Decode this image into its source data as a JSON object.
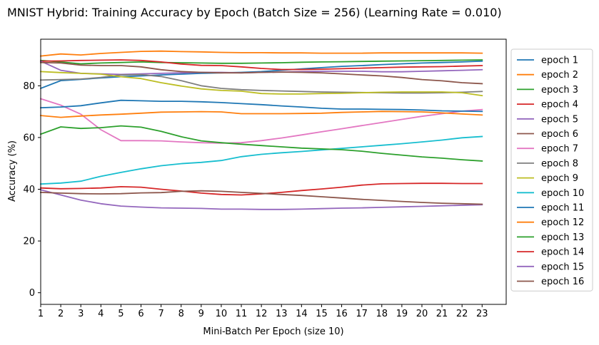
{
  "chart_data": {
    "type": "line",
    "title": "MNIST Hybrid: Training Accuracy by Epoch (Batch Size = 256) (Learning Rate = 0.010)",
    "xlabel": "Mini-Batch Per Epoch (size 10)",
    "ylabel": "Accuracy (%)",
    "xlim": [
      1,
      24.2
    ],
    "ylim": [
      -4.5,
      98
    ],
    "x_ticks": [
      1,
      2,
      3,
      4,
      5,
      6,
      7,
      8,
      9,
      10,
      11,
      12,
      13,
      14,
      15,
      16,
      17,
      18,
      19,
      20,
      21,
      22,
      23
    ],
    "y_ticks": [
      0,
      20,
      40,
      60,
      80
    ],
    "grid": false,
    "legend_position": "right-outside",
    "x": [
      1,
      2,
      3,
      4,
      5,
      6,
      7,
      8,
      9,
      10,
      11,
      12,
      13,
      14,
      15,
      16,
      17,
      18,
      19,
      20,
      21,
      22,
      23
    ],
    "series": [
      {
        "name": "epoch 1",
        "color": "#1f77b4",
        "values": [
          79.0,
          82.0,
          82.5,
          83.0,
          83.5,
          83.8,
          84.2,
          84.5,
          84.8,
          85.0,
          85.2,
          85.5,
          86.0,
          86.5,
          87.0,
          87.5,
          87.8,
          88.2,
          88.5,
          88.8,
          89.0,
          89.2,
          89.5
        ]
      },
      {
        "name": "epoch 2",
        "color": "#ff7f0e",
        "values": [
          91.5,
          92.3,
          91.9,
          92.5,
          92.9,
          93.3,
          93.4,
          93.2,
          93.1,
          92.9,
          92.8,
          92.8,
          92.7,
          92.7,
          92.6,
          92.6,
          92.6,
          92.7,
          92.7,
          92.7,
          92.7,
          92.7,
          92.6
        ]
      },
      {
        "name": "epoch 3",
        "color": "#2ca02c",
        "values": [
          89.8,
          89.2,
          88.5,
          88.8,
          89.0,
          89.2,
          89.0,
          88.9,
          88.8,
          88.7,
          88.7,
          88.8,
          88.9,
          89.1,
          89.2,
          89.3,
          89.4,
          89.5,
          89.6,
          89.7,
          89.8,
          89.9,
          90.0
        ]
      },
      {
        "name": "epoch 4",
        "color": "#d62728",
        "values": [
          89.5,
          89.6,
          89.8,
          89.9,
          90.0,
          89.8,
          89.2,
          88.4,
          87.9,
          87.8,
          87.3,
          86.7,
          86.3,
          86.3,
          86.4,
          86.6,
          86.8,
          87.0,
          87.2,
          87.3,
          87.4,
          87.6,
          87.8
        ]
      },
      {
        "name": "epoch 5",
        "color": "#9467bd",
        "values": [
          89.5,
          86.0,
          84.8,
          84.6,
          84.4,
          84.6,
          84.8,
          85.0,
          85.2,
          85.2,
          85.0,
          85.2,
          85.3,
          85.5,
          85.6,
          85.6,
          85.6,
          85.4,
          85.4,
          85.6,
          85.8,
          86.0,
          86.2
        ]
      },
      {
        "name": "epoch 6",
        "color": "#8c564b",
        "values": [
          89.0,
          88.8,
          88.0,
          87.8,
          87.8,
          87.3,
          86.2,
          85.5,
          85.2,
          85.0,
          85.0,
          85.2,
          85.3,
          85.2,
          85.0,
          84.6,
          84.2,
          83.8,
          83.2,
          82.4,
          81.9,
          81.2,
          80.8
        ]
      },
      {
        "name": "epoch 7",
        "color": "#e377c2",
        "values": [
          75.0,
          72.5,
          69.0,
          63.0,
          58.8,
          58.8,
          58.7,
          58.3,
          58.0,
          57.8,
          58.0,
          58.8,
          59.8,
          61.0,
          62.2,
          63.4,
          64.6,
          65.8,
          67.0,
          68.2,
          69.2,
          70.2,
          70.8
        ]
      },
      {
        "name": "epoch 8",
        "color": "#7f7f7f",
        "values": [
          82.2,
          82.4,
          82.6,
          83.2,
          84.2,
          84.3,
          83.6,
          82.0,
          80.0,
          79.0,
          78.5,
          78.2,
          78.0,
          77.8,
          77.6,
          77.5,
          77.4,
          77.3,
          77.2,
          77.2,
          77.3,
          77.5,
          77.8
        ]
      },
      {
        "name": "epoch 9",
        "color": "#bcbd22",
        "values": [
          85.5,
          85.1,
          84.8,
          84.5,
          83.5,
          82.8,
          81.2,
          79.9,
          78.8,
          78.2,
          77.9,
          77.0,
          76.8,
          76.8,
          77.0,
          77.1,
          77.3,
          77.5,
          77.6,
          77.6,
          77.6,
          77.3,
          76.2
        ]
      },
      {
        "name": "epoch 10",
        "color": "#17becf",
        "values": [
          42.0,
          42.4,
          43.1,
          45.0,
          46.5,
          47.9,
          49.1,
          49.9,
          50.4,
          51.1,
          52.6,
          53.5,
          54.1,
          54.6,
          55.2,
          55.8,
          56.4,
          57.0,
          57.6,
          58.3,
          59.0,
          59.9,
          60.4
        ]
      },
      {
        "name": "epoch 11",
        "color": "#1f77b4",
        "values": [
          71.5,
          71.8,
          72.3,
          73.4,
          74.4,
          74.2,
          74.0,
          74.0,
          73.8,
          73.5,
          73.1,
          72.7,
          72.2,
          71.8,
          71.3,
          71.0,
          71.0,
          70.9,
          70.8,
          70.6,
          70.3,
          70.2,
          70.1
        ]
      },
      {
        "name": "epoch 12",
        "color": "#ff7f0e",
        "values": [
          68.5,
          67.8,
          68.3,
          68.7,
          69.0,
          69.4,
          69.8,
          69.9,
          70.0,
          69.9,
          69.2,
          69.2,
          69.2,
          69.3,
          69.4,
          69.7,
          69.9,
          70.1,
          70.0,
          69.9,
          69.5,
          69.1,
          68.7
        ]
      },
      {
        "name": "epoch 13",
        "color": "#2ca02c",
        "values": [
          61.3,
          64.1,
          63.5,
          63.8,
          64.5,
          64.0,
          62.4,
          60.3,
          58.7,
          58.0,
          57.4,
          56.9,
          56.4,
          55.9,
          55.6,
          55.3,
          54.7,
          53.9,
          53.2,
          52.5,
          52.0,
          51.4,
          50.9
        ]
      },
      {
        "name": "epoch 14",
        "color": "#d62728",
        "values": [
          40.5,
          40.2,
          40.3,
          40.5,
          41.0,
          40.8,
          40.0,
          39.3,
          38.5,
          38.0,
          37.8,
          38.2,
          38.8,
          39.5,
          40.1,
          40.8,
          41.6,
          42.1,
          42.2,
          42.3,
          42.3,
          42.2,
          42.2
        ]
      },
      {
        "name": "epoch 15",
        "color": "#9467bd",
        "values": [
          39.8,
          37.8,
          35.8,
          34.4,
          33.5,
          33.1,
          32.8,
          32.7,
          32.6,
          32.3,
          32.3,
          32.2,
          32.2,
          32.3,
          32.5,
          32.7,
          32.8,
          33.0,
          33.2,
          33.4,
          33.6,
          33.8,
          34.0
        ]
      },
      {
        "name": "epoch 16",
        "color": "#8c564b",
        "values": [
          38.8,
          38.5,
          38.3,
          38.2,
          38.3,
          38.6,
          38.7,
          39.2,
          39.4,
          39.2,
          38.8,
          38.4,
          38.0,
          37.6,
          37.1,
          36.6,
          36.1,
          35.7,
          35.3,
          34.9,
          34.6,
          34.4,
          34.2
        ]
      }
    ]
  }
}
